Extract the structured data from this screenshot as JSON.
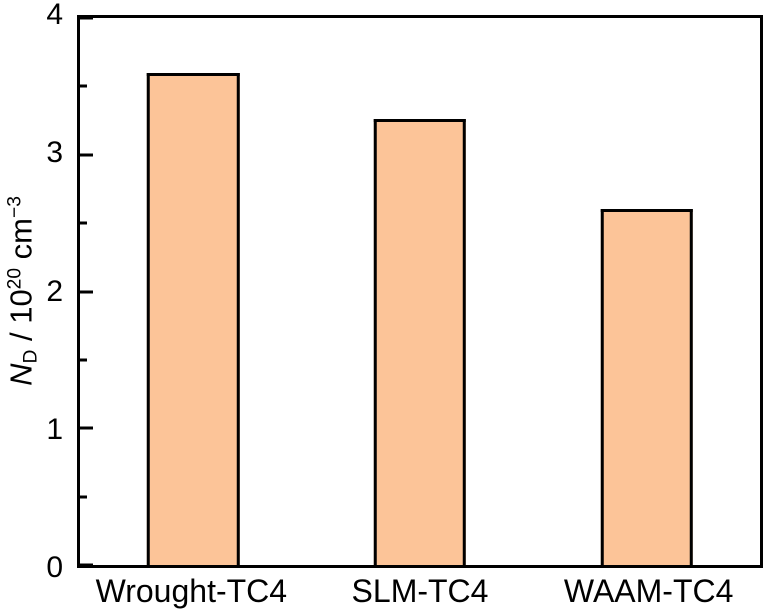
{
  "figure": {
    "background": "#ffffff",
    "frame_color": "#000000"
  },
  "chart_data": {
    "type": "bar",
    "categories": [
      "Wrought-TC4",
      "SLM-TC4",
      "WAAM-TC4"
    ],
    "values": [
      3.6,
      3.26,
      2.6
    ],
    "title": "",
    "xlabel": "",
    "ylabel": "N_D / 10^20 cm^-3",
    "ylabel_parts": {
      "symbol": "N",
      "symbol_sub": "D",
      "separator": " / 10",
      "exponent": "20",
      "unit": " cm",
      "unit_exponent": "−3"
    },
    "ylim": [
      0,
      4
    ],
    "yticks": [
      0,
      1,
      2,
      3,
      4
    ],
    "minor_yticks": [
      0.5,
      1.5,
      2.5,
      3.5
    ],
    "grid": false,
    "legend": false,
    "bar_color": "#fcc498",
    "bar_edge_color": "#000000",
    "bar_width_frac": 0.136
  }
}
